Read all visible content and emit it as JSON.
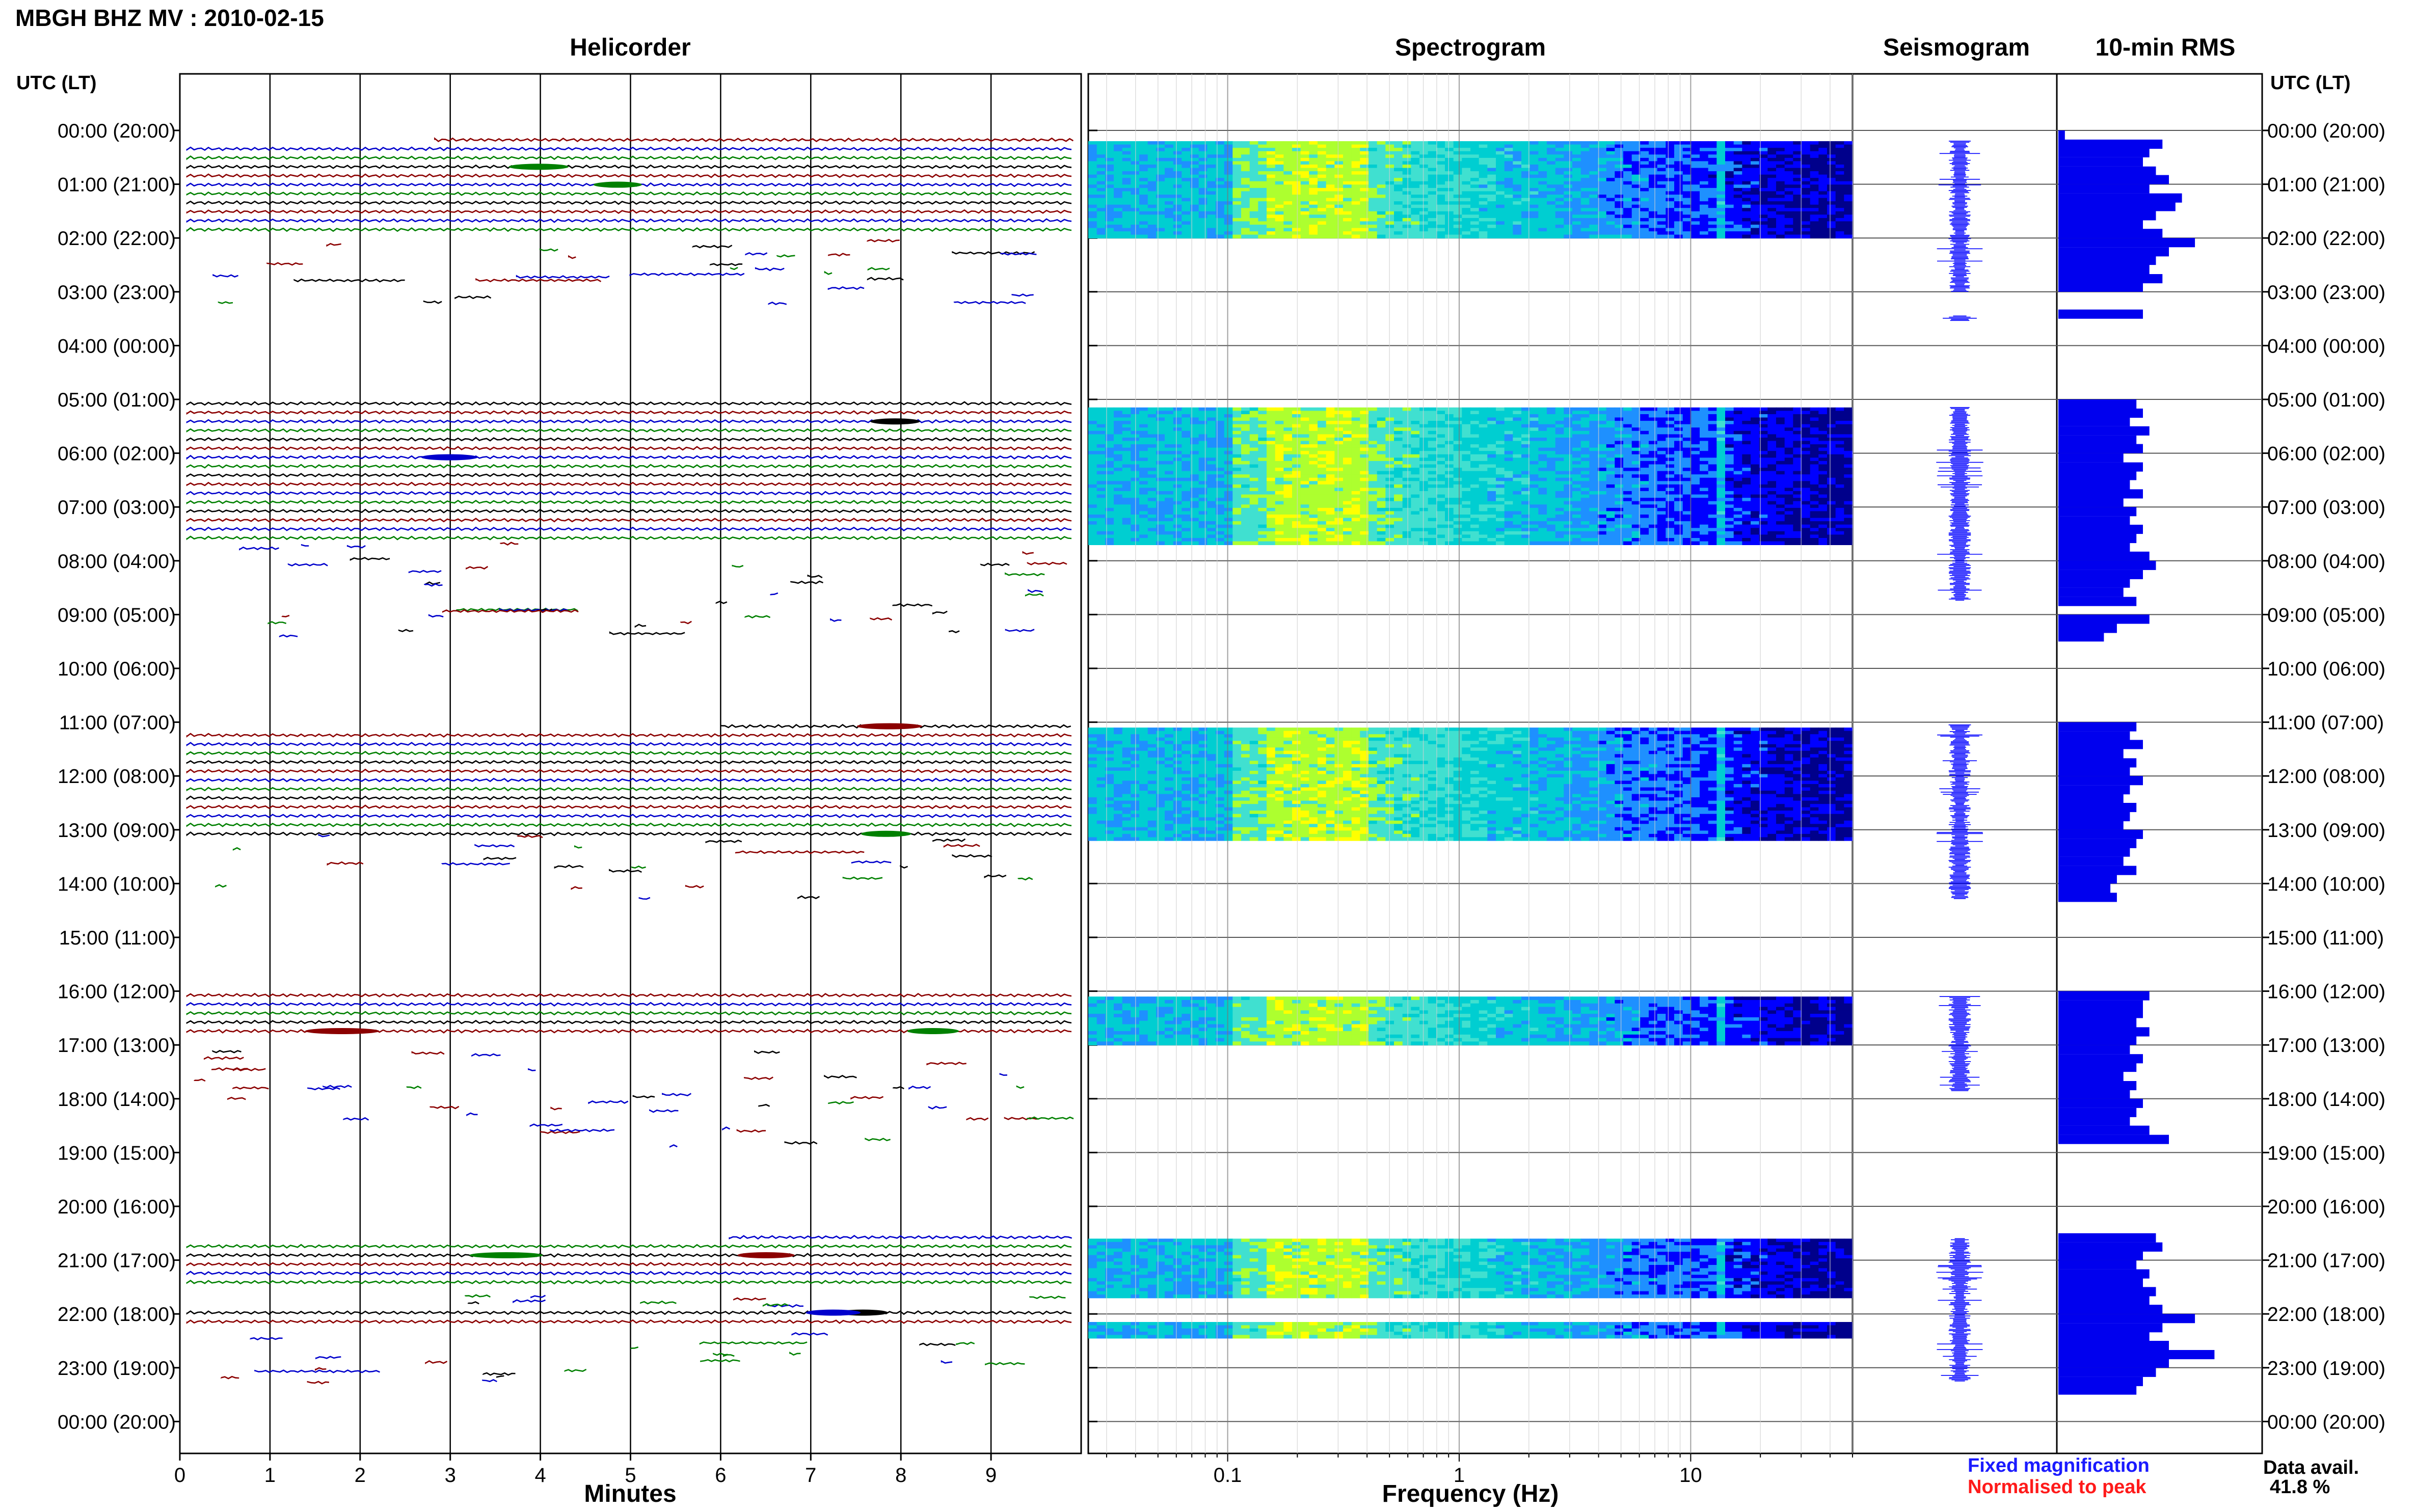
{
  "header": {
    "title": "MBGH BHZ MV : 2010-02-15",
    "utc_label_left": "UTC (LT)",
    "utc_label_right": "UTC (LT)"
  },
  "panels": {
    "helicorder": "Helicorder",
    "spectrogram": "Spectrogram",
    "seismogram": "Seismogram",
    "rms": "10-min RMS"
  },
  "axes": {
    "helicorder_xlabel": "Minutes",
    "spectrogram_xlabel": "Frequency (Hz)"
  },
  "legend": {
    "fixed": "Fixed magnification",
    "normalised": "Normalised to peak"
  },
  "availability": {
    "label": "Data avail.",
    "value": "41.8 %"
  },
  "colors": {
    "trace_cycle": [
      "#8b0000",
      "#0000cc",
      "#008000",
      "#000000"
    ],
    "seismogram": "#0000ff",
    "rms": "#0000ee",
    "legend_fixed": "#1a1aff",
    "legend_norm": "#ff1a1a"
  },
  "chart_data": [
    {
      "type": "heatmap",
      "panel": "helicorder",
      "x_ticks": [
        "0",
        "1",
        "2",
        "3",
        "4",
        "5",
        "6",
        "7",
        "8",
        "9"
      ],
      "xlim": [
        0,
        10
      ],
      "time_labels": [
        "00:00 (20:00)",
        "01:00 (21:00)",
        "02:00 (22:00)",
        "03:00 (23:00)",
        "04:00 (00:00)",
        "05:00 (01:00)",
        "06:00 (02:00)",
        "07:00 (03:00)",
        "08:00 (04:00)",
        "09:00 (05:00)",
        "10:00 (06:00)",
        "11:00 (07:00)",
        "12:00 (08:00)",
        "13:00 (09:00)",
        "14:00 (10:00)",
        "15:00 (11:00)",
        "16:00 (12:00)",
        "17:00 (13:00)",
        "18:00 (14:00)",
        "19:00 (15:00)",
        "20:00 (16:00)",
        "21:00 (17:00)",
        "22:00 (18:00)",
        "23:00 (19:00)",
        "00:00 (20:00)"
      ],
      "continuous_data_hours": [
        [
          0.1,
          2.0
        ],
        [
          5.0,
          7.6
        ],
        [
          11.0,
          13.1
        ],
        [
          16.0,
          16.9
        ],
        [
          20.5,
          21.5
        ],
        [
          21.9,
          22.3
        ]
      ]
    },
    {
      "type": "heatmap",
      "panel": "spectrogram",
      "x_scale": "log",
      "xlim": [
        0.025,
        50
      ],
      "x_ticks": [
        "0.1",
        "1",
        "10"
      ],
      "colormap": [
        "#00008b",
        "#0000ff",
        "#1e90ff",
        "#00ced1",
        "#40e0d0",
        "#adff2f",
        "#ffff00"
      ],
      "hours_with_data": [
        [
          0.2,
          2.0
        ],
        [
          5.15,
          7.7
        ],
        [
          11.1,
          13.2
        ],
        [
          16.1,
          17.0
        ],
        [
          20.6,
          21.7
        ],
        [
          22.15,
          22.45
        ]
      ]
    },
    {
      "type": "line",
      "panel": "seismogram",
      "hours_with_data": [
        [
          0.2,
          3.0
        ],
        [
          3.45,
          3.55
        ],
        [
          5.15,
          8.75
        ],
        [
          11.05,
          14.3
        ],
        [
          16.1,
          17.85
        ],
        [
          20.6,
          23.25
        ]
      ]
    },
    {
      "type": "bar",
      "panel": "10-min RMS",
      "orientation": "horizontal",
      "hour_start": [
        0.0,
        0.17,
        0.33,
        0.5,
        0.67,
        0.83,
        1.0,
        1.17,
        1.33,
        1.5,
        1.67,
        1.83,
        2.0,
        2.17,
        2.33,
        2.5,
        2.67,
        2.83,
        3.33,
        5.0,
        5.17,
        5.33,
        5.5,
        5.67,
        5.83,
        6.0,
        6.17,
        6.33,
        6.5,
        6.67,
        6.83,
        7.0,
        7.17,
        7.33,
        7.5,
        7.67,
        7.83,
        8.0,
        8.17,
        8.33,
        8.5,
        8.67,
        9.0,
        9.17,
        9.33,
        11.0,
        11.17,
        11.33,
        11.5,
        11.67,
        11.83,
        12.0,
        12.17,
        12.33,
        12.5,
        12.67,
        12.83,
        13.0,
        13.17,
        13.33,
        13.5,
        13.67,
        13.83,
        14.0,
        14.17,
        16.0,
        16.17,
        16.33,
        16.5,
        16.67,
        16.83,
        17.0,
        17.17,
        17.33,
        17.5,
        17.67,
        17.83,
        18.0,
        18.17,
        18.33,
        18.5,
        18.67,
        20.5,
        20.67,
        20.83,
        21.0,
        21.17,
        21.33,
        21.5,
        21.67,
        21.83,
        22.0,
        22.17,
        22.33,
        22.5,
        22.67,
        22.83,
        23.0,
        23.17,
        23.33
      ],
      "values": [
        0.1,
        1.6,
        1.4,
        1.3,
        1.5,
        1.7,
        1.4,
        1.9,
        1.8,
        1.5,
        1.3,
        1.6,
        2.1,
        1.7,
        1.5,
        1.4,
        1.6,
        1.3,
        1.3,
        1.2,
        1.3,
        1.1,
        1.4,
        1.2,
        1.3,
        1.0,
        1.3,
        1.2,
        1.1,
        1.3,
        1.0,
        1.2,
        1.1,
        1.3,
        1.2,
        1.1,
        1.4,
        1.5,
        1.3,
        1.1,
        1.0,
        1.2,
        1.4,
        0.9,
        0.7,
        1.2,
        1.1,
        1.3,
        1.0,
        1.2,
        1.1,
        1.3,
        1.1,
        1.0,
        1.2,
        1.1,
        1.0,
        1.3,
        1.2,
        1.1,
        1.0,
        1.2,
        0.9,
        0.8,
        0.9,
        1.4,
        1.3,
        1.3,
        1.2,
        1.4,
        1.2,
        1.1,
        1.3,
        1.2,
        1.0,
        1.2,
        1.1,
        1.3,
        1.2,
        1.1,
        1.4,
        1.7,
        1.5,
        1.6,
        1.3,
        1.2,
        1.4,
        1.3,
        1.5,
        1.4,
        1.6,
        2.1,
        1.6,
        1.4,
        1.7,
        2.4,
        1.7,
        1.5,
        1.3,
        1.2
      ]
    }
  ]
}
